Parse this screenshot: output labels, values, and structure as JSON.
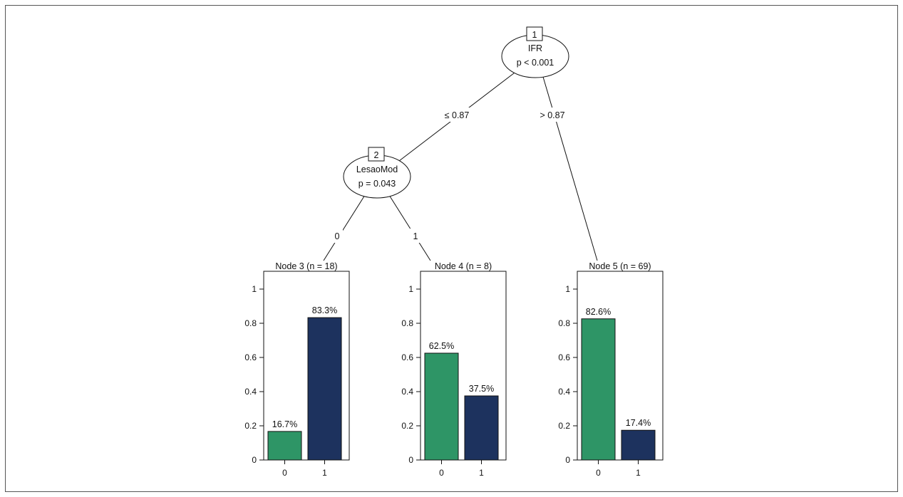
{
  "inner_nodes": [
    {
      "id": "1",
      "variable": "IFR",
      "p": "p < 0.001"
    },
    {
      "id": "2",
      "variable": "LesaoMod",
      "p": "p = 0.043"
    }
  ],
  "edges": [
    {
      "from": "1",
      "to": "2",
      "label": "≤ 0.87"
    },
    {
      "from": "1",
      "to": "5",
      "label": "> 0.87"
    },
    {
      "from": "2",
      "to": "3",
      "label": "0"
    },
    {
      "from": "2",
      "to": "4",
      "label": "1"
    }
  ],
  "colors": {
    "class_0": "#2e9566",
    "class_1": "#1d325e"
  },
  "chart_data": [
    {
      "type": "bar",
      "title": "Node 3 (n = 18)",
      "categories": [
        "0",
        "1"
      ],
      "values": [
        0.167,
        0.833
      ],
      "labels": [
        "16.7%",
        "83.3%"
      ],
      "ylim": [
        0,
        1
      ],
      "yticks": [
        "0",
        "0.2",
        "0.4",
        "0.6",
        "0.8",
        "1"
      ]
    },
    {
      "type": "bar",
      "title": "Node 4 (n = 8)",
      "categories": [
        "0",
        "1"
      ],
      "values": [
        0.625,
        0.375
      ],
      "labels": [
        "62.5%",
        "37.5%"
      ],
      "ylim": [
        0,
        1
      ],
      "yticks": [
        "0",
        "0.2",
        "0.4",
        "0.6",
        "0.8",
        "1"
      ]
    },
    {
      "type": "bar",
      "title": "Node 5 (n = 69)",
      "categories": [
        "0",
        "1"
      ],
      "values": [
        0.826,
        0.174
      ],
      "labels": [
        "82.6%",
        "17.4%"
      ],
      "ylim": [
        0,
        1
      ],
      "yticks": [
        "0",
        "0.2",
        "0.4",
        "0.6",
        "0.8",
        "1"
      ]
    }
  ]
}
